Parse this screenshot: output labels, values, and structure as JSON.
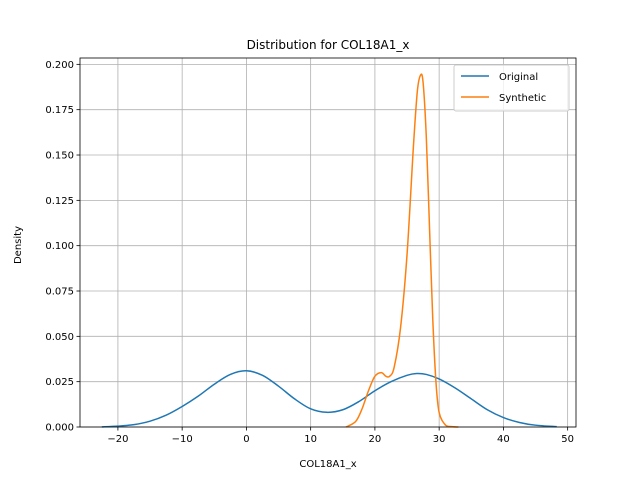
{
  "chart_data": {
    "type": "line",
    "title": "Distribution for COL18A1_x",
    "xlabel": "COL18A1_x",
    "ylabel": "Density",
    "xlim": [
      -25.9,
      51.3
    ],
    "ylim": [
      0,
      0.2035
    ],
    "xticks": [
      -20,
      -10,
      0,
      10,
      20,
      30,
      40,
      50
    ],
    "yticks": [
      0.0,
      0.025,
      0.05,
      0.075,
      0.1,
      0.125,
      0.15,
      0.175,
      0.2
    ],
    "ytick_labels": [
      "0.000",
      "0.025",
      "0.050",
      "0.075",
      "0.100",
      "0.125",
      "0.150",
      "0.175",
      "0.200"
    ],
    "xtick_labels": [
      "−20",
      "−10",
      "0",
      "10",
      "20",
      "30",
      "40",
      "50"
    ],
    "grid": true,
    "legend_position": "top-right",
    "series": [
      {
        "name": "Original",
        "color": "#1f77b4",
        "x": [
          -22.5,
          -20,
          -17.5,
          -15,
          -12.5,
          -10,
          -7.5,
          -5,
          -2.5,
          0,
          2.5,
          5,
          7.5,
          10,
          12.5,
          15,
          17.5,
          20,
          22.5,
          25,
          26.5,
          28,
          30,
          32.5,
          35,
          37.5,
          40,
          42.5,
          45,
          48.3
        ],
        "values": [
          0.0001,
          0.0005,
          0.0013,
          0.0032,
          0.0065,
          0.0113,
          0.017,
          0.0236,
          0.029,
          0.031,
          0.0285,
          0.0225,
          0.0155,
          0.01,
          0.0081,
          0.0095,
          0.014,
          0.02,
          0.025,
          0.0285,
          0.0295,
          0.029,
          0.0265,
          0.0215,
          0.0155,
          0.0095,
          0.0052,
          0.0025,
          0.001,
          0.0002
        ]
      },
      {
        "name": "Synthetic",
        "color": "#ff7f0e",
        "x": [
          15.5,
          17,
          18,
          19,
          20,
          21,
          21.7,
          22.3,
          23,
          24,
          25,
          26,
          26.6,
          27.1,
          27.5,
          28,
          28.5,
          29,
          29.5,
          30,
          31,
          32,
          33
        ],
        "values": [
          0.0,
          0.003,
          0.01,
          0.02,
          0.028,
          0.03,
          0.028,
          0.028,
          0.033,
          0.055,
          0.095,
          0.155,
          0.185,
          0.194,
          0.19,
          0.16,
          0.11,
          0.06,
          0.025,
          0.008,
          0.001,
          0.0002,
          0.0
        ]
      }
    ]
  }
}
